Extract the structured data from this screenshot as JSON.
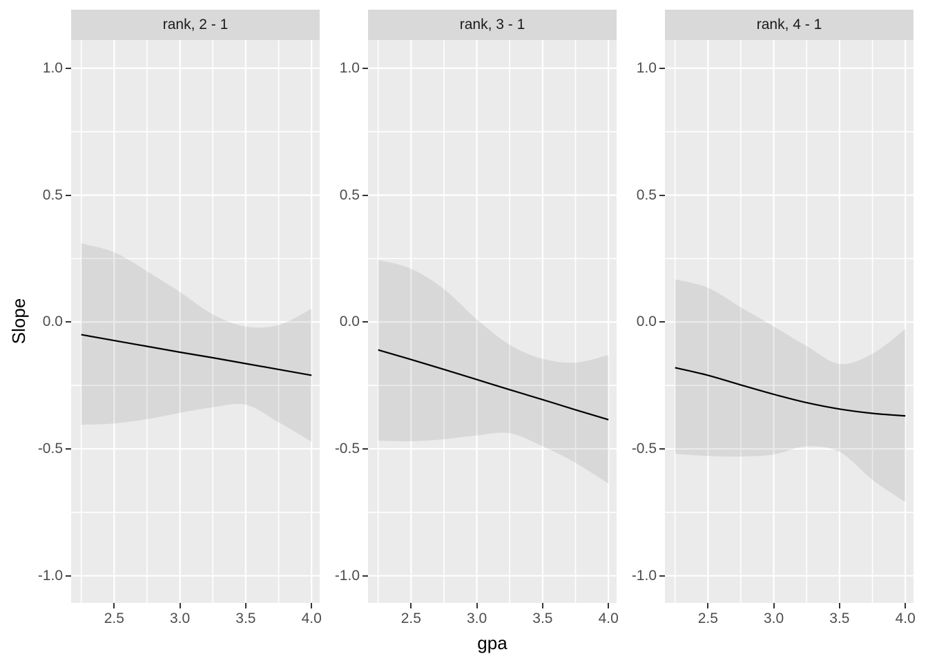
{
  "chart_data": {
    "type": "line",
    "description": "Faceted line chart with confidence ribbons (ggplot style), one panel per rank contrast",
    "title": "",
    "xlabel": "gpa",
    "ylabel": "Slope",
    "legend": "none",
    "grid": "on",
    "x": [
      2.25,
      2.5,
      2.75,
      3.0,
      3.25,
      3.5,
      3.75,
      4.0
    ],
    "facets": [
      {
        "label": "rank, 2 - 1",
        "line": [
          -0.05,
          -0.073,
          -0.096,
          -0.119,
          -0.141,
          -0.164,
          -0.187,
          -0.21
        ],
        "upper": [
          0.31,
          0.275,
          0.2,
          0.118,
          0.03,
          -0.018,
          -0.012,
          0.052
        ],
        "lower": [
          -0.405,
          -0.4,
          -0.383,
          -0.358,
          -0.336,
          -0.326,
          -0.395,
          -0.472
        ]
      },
      {
        "label": "rank, 3 - 1",
        "line": [
          -0.11,
          -0.148,
          -0.187,
          -0.227,
          -0.267,
          -0.306,
          -0.346,
          -0.385
        ],
        "upper": [
          0.245,
          0.21,
          0.13,
          0.01,
          -0.09,
          -0.145,
          -0.16,
          -0.13
        ],
        "lower": [
          -0.468,
          -0.47,
          -0.462,
          -0.447,
          -0.438,
          -0.49,
          -0.555,
          -0.637
        ]
      },
      {
        "label": "rank, 4 - 1",
        "line": [
          -0.18,
          -0.21,
          -0.248,
          -0.285,
          -0.318,
          -0.343,
          -0.36,
          -0.37
        ],
        "upper": [
          0.168,
          0.135,
          0.058,
          -0.018,
          -0.095,
          -0.165,
          -0.125,
          -0.028
        ],
        "lower": [
          -0.52,
          -0.528,
          -0.53,
          -0.522,
          -0.49,
          -0.512,
          -0.622,
          -0.71
        ]
      }
    ],
    "xticks": {
      "values": [
        2.5,
        3.0,
        3.5,
        4.0
      ],
      "labels": [
        "2.5",
        "3.0",
        "3.5",
        "4.0"
      ]
    },
    "yticks": {
      "values": [
        1.0,
        0.5,
        0.0,
        -0.5,
        -1.0
      ],
      "labels": [
        "1.0",
        "0.5",
        "0.0",
        "-0.5",
        "-1.0"
      ]
    },
    "minor_xticks": [
      2.25,
      2.75,
      3.25,
      3.75
    ],
    "minor_yticks": [
      0.75,
      0.25,
      -0.25,
      -0.75
    ],
    "xlim": [
      2.173,
      4.062
    ],
    "ylim": [
      -1.107,
      1.111
    ],
    "style": {
      "panel_bg": "#EBEBEB",
      "strip_bg": "#D9D9D9",
      "grid_color": "#FFFFFF",
      "ribbon_fill": "rgba(0,0,0,0.08)",
      "line_color": "#000000",
      "tick_text_color": "#4D4D4D",
      "tick_mark_color": "#333333"
    }
  }
}
